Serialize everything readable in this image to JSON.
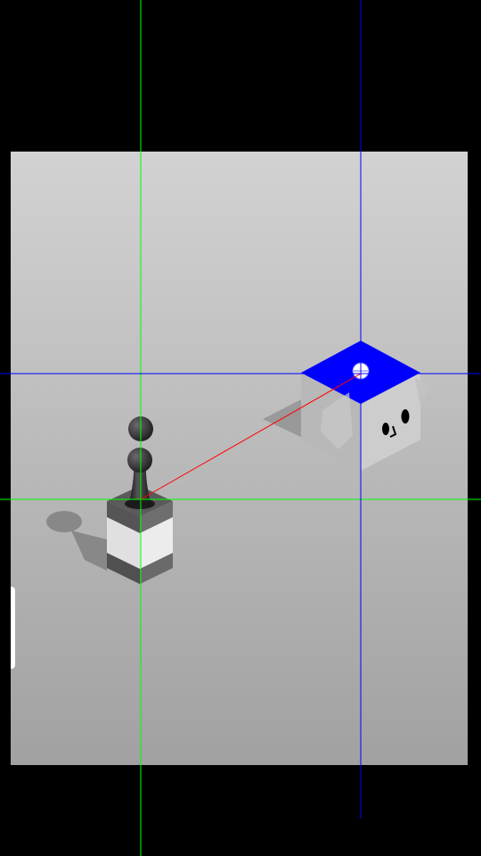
{
  "scene": {
    "background_color": "#000000",
    "board_gradient": [
      "#d2d2d2",
      "#a1a1a1"
    ],
    "guide_green_color": "#00ff00",
    "guide_blue_color": "#0000ff",
    "aim_line_color": "#ff0000",
    "target_top_color": "#0000ff",
    "pedestal_band_color": "#e8e8e8",
    "pawn_color": "#2b2b2b"
  },
  "elements": {
    "player_piece": "pawn-icon",
    "target_block": "cube-with-face-icon",
    "target_marker": "crosshair-circle-icon",
    "jump_power_indicator": "aim-line"
  }
}
